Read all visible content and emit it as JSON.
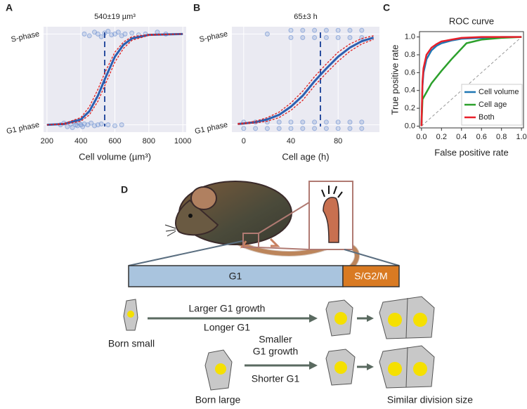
{
  "chart_data": [
    {
      "type": "line",
      "label": "A",
      "title": "540±19 µm³",
      "xlabel": "Cell volume (µm³)",
      "xlim": [
        180,
        1020
      ],
      "xticks": [
        200,
        400,
        600,
        800,
        1000
      ],
      "ylim": [
        -0.08,
        1.08
      ],
      "yticks": [
        {
          "value": 0,
          "label": "G1 phase"
        },
        {
          "value": 1,
          "label": "S-phase"
        }
      ],
      "threshold": 540,
      "grid": true,
      "x": [
        200,
        300,
        400,
        450,
        500,
        540,
        600,
        650,
        700,
        800,
        1000
      ],
      "series": [
        {
          "color": "#2b5fb0",
          "style": "solid",
          "values": [
            0,
            0.01,
            0.06,
            0.15,
            0.32,
            0.5,
            0.75,
            0.88,
            0.95,
            0.99,
            1
          ]
        },
        {
          "color": "#e02020",
          "style": "dashed",
          "values": [
            0,
            0.005,
            0.04,
            0.11,
            0.26,
            0.43,
            0.69,
            0.84,
            0.93,
            0.985,
            1
          ]
        },
        {
          "color": "#e02020",
          "style": "dashed",
          "values": [
            0,
            0.015,
            0.08,
            0.2,
            0.39,
            0.57,
            0.8,
            0.91,
            0.97,
            0.995,
            1
          ]
        }
      ],
      "points": {
        "color": "#6a8fd0",
        "x": [
          280,
          300,
          320,
          340,
          350,
          360,
          370,
          380,
          390,
          400,
          410,
          420,
          440,
          460,
          480,
          500,
          520,
          560,
          600,
          640,
          420,
          450,
          480,
          500,
          520,
          540,
          560,
          580,
          600,
          620,
          640,
          660,
          700,
          740,
          780,
          850,
          900
        ],
        "y": [
          0,
          0.02,
          -0.02,
          0.01,
          -0.03,
          0.03,
          0,
          -0.01,
          0.02,
          0,
          -0.02,
          0.01,
          0,
          0.02,
          -0.01,
          0,
          0.01,
          0,
          -0.01,
          0,
          1,
          0.98,
          1.02,
          1,
          0.97,
          1.01,
          1.03,
          0.99,
          1,
          1.02,
          0.98,
          1,
          1.01,
          0.99,
          1,
          1.02,
          1
        ]
      }
    },
    {
      "type": "line",
      "label": "B",
      "title": "65±3 h",
      "xlabel": "Cell age (h)",
      "xlim": [
        -10,
        115
      ],
      "xticks": [
        0,
        40,
        80
      ],
      "ylim": [
        -0.08,
        1.08
      ],
      "yticks": [
        {
          "value": 0,
          "label": "G1 phase"
        },
        {
          "value": 1,
          "label": "S-phase"
        }
      ],
      "threshold": 65,
      "grid": true,
      "x": [
        -5,
        0,
        10,
        20,
        30,
        40,
        50,
        60,
        65,
        70,
        80,
        90,
        100,
        110
      ],
      "series": [
        {
          "color": "#2b5fb0",
          "style": "solid",
          "values": [
            0.01,
            0.015,
            0.03,
            0.06,
            0.11,
            0.2,
            0.32,
            0.48,
            0.55,
            0.62,
            0.75,
            0.85,
            0.92,
            0.96
          ]
        },
        {
          "color": "#e02020",
          "style": "dashed",
          "values": [
            0.005,
            0.01,
            0.02,
            0.04,
            0.08,
            0.16,
            0.27,
            0.43,
            0.5,
            0.57,
            0.7,
            0.81,
            0.89,
            0.94
          ]
        },
        {
          "color": "#e02020",
          "style": "dashed",
          "values": [
            0.015,
            0.02,
            0.04,
            0.08,
            0.14,
            0.24,
            0.37,
            0.53,
            0.6,
            0.67,
            0.8,
            0.89,
            0.95,
            0.98
          ]
        }
      ],
      "points": {
        "color": "#6a8fd0",
        "x": [
          0,
          10,
          20,
          30,
          40,
          50,
          60,
          70,
          80,
          90,
          100,
          0,
          10,
          20,
          30,
          40,
          50,
          60,
          70,
          80,
          90,
          100,
          40,
          50,
          60,
          70,
          80,
          90,
          100,
          40,
          50,
          60,
          70,
          80,
          90,
          100,
          20
        ],
        "y": [
          0.03,
          0.03,
          0.03,
          0.03,
          0.03,
          0.03,
          0.03,
          0.03,
          0.03,
          0.03,
          0.03,
          -0.04,
          -0.04,
          -0.04,
          -0.04,
          -0.04,
          -0.04,
          -0.04,
          -0.04,
          -0.04,
          -0.04,
          -0.04,
          1.04,
          1.04,
          1.04,
          1.04,
          1.04,
          1.04,
          1.04,
          0.96,
          0.96,
          0.96,
          0.96,
          0.96,
          0.96,
          0.96,
          1
        ]
      }
    },
    {
      "type": "roc",
      "label": "C",
      "title": "ROC curve",
      "xlabel": "False positive rate",
      "ylabel": "True positive rate",
      "xlim": [
        -0.02,
        1.02
      ],
      "ylim": [
        -0.02,
        1.06
      ],
      "xticks": [
        {
          "value": 0,
          "label": "0.0"
        },
        0.2,
        0.4,
        0.6,
        0.8,
        {
          "value": 1,
          "label": "1.0"
        }
      ],
      "yticks": [
        {
          "value": 0,
          "label": "0.0"
        },
        0.2,
        0.4,
        0.6,
        0.8,
        {
          "value": 1,
          "label": "1.0"
        }
      ],
      "legend": "lower right",
      "series": [
        {
          "name": "Cell volume",
          "color": "#1f77b4",
          "x": [
            0,
            0.01,
            0.02,
            0.05,
            0.1,
            0.15,
            0.2,
            0.3,
            0.4,
            0.6,
            0.8,
            1
          ],
          "values": [
            0,
            0.45,
            0.6,
            0.75,
            0.85,
            0.9,
            0.93,
            0.96,
            0.98,
            0.99,
            1,
            1
          ]
        },
        {
          "name": "Cell age",
          "color": "#2ca02c",
          "x": [
            0,
            0.01,
            0.05,
            0.1,
            0.2,
            0.3,
            0.45,
            0.6,
            0.8,
            1
          ],
          "values": [
            0,
            0.3,
            0.38,
            0.48,
            0.62,
            0.75,
            0.93,
            0.97,
            0.99,
            1
          ]
        },
        {
          "name": "Both",
          "color": "#e8202a",
          "x": [
            0,
            0.01,
            0.02,
            0.05,
            0.1,
            0.15,
            0.2,
            0.3,
            0.4,
            0.6,
            0.8,
            1
          ],
          "values": [
            0,
            0.5,
            0.65,
            0.8,
            0.88,
            0.92,
            0.95,
            0.97,
            0.99,
            1,
            1,
            1
          ]
        }
      ]
    }
  ],
  "diagram": {
    "label": "D",
    "g1": "G1",
    "sg2m": "S/G2/M",
    "small": {
      "top": "Larger G1 growth",
      "bottom": "Longer G1",
      "caption": "Born small"
    },
    "large": {
      "top1": "Smaller",
      "top2": "G1 growth",
      "bottom": "Shorter G1",
      "caption": "Born large"
    },
    "result": "Similar division size"
  }
}
